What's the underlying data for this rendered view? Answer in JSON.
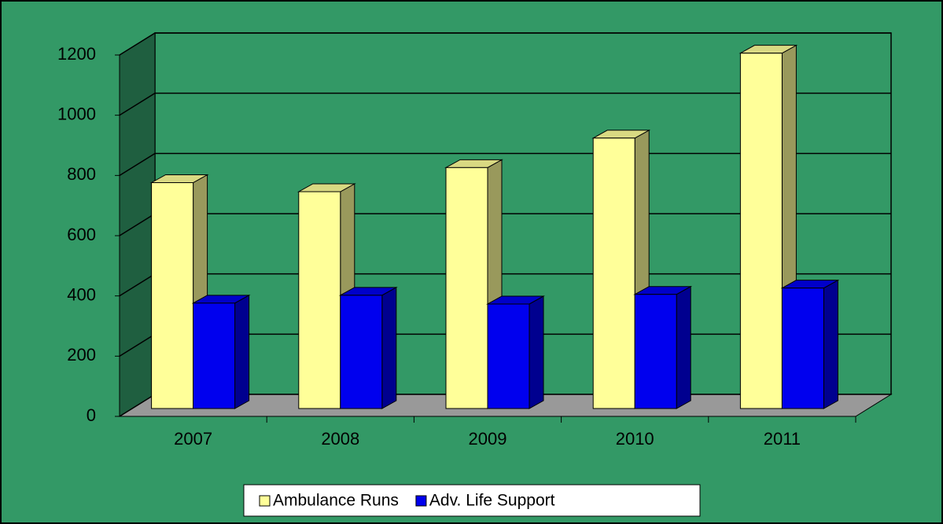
{
  "chart_data": {
    "type": "bar3d",
    "categories": [
      "2007",
      "2008",
      "2009",
      "2010",
      "2011"
    ],
    "series": [
      {
        "name": "Ambulance Runs",
        "color": "#ffff99",
        "values": [
          750,
          720,
          800,
          898,
          1180
        ]
      },
      {
        "name": "Adv. Life Support",
        "color": "#0000ee",
        "values": [
          350,
          376,
          347,
          379,
          400
        ]
      }
    ],
    "ylim": [
      0,
      1200
    ],
    "yticks": [
      0,
      200,
      400,
      600,
      800,
      1000,
      1200
    ],
    "grid": true,
    "legend": "bottom"
  }
}
